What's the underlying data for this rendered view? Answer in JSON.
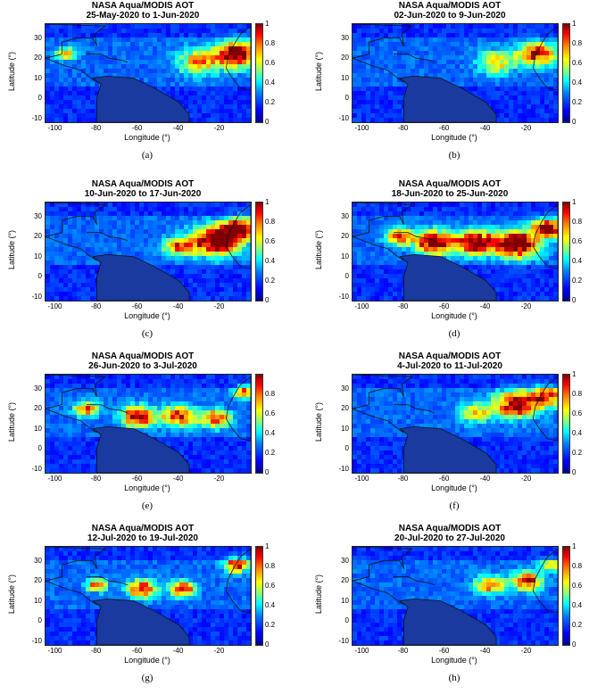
{
  "chart_data": [
    {
      "type": "heatmap",
      "title": "NASA Aqua/MODIS AOT",
      "subtitle": "25-May-2020 to 1-Jun-2020",
      "panel_label": "(a)",
      "xlabel": "Longitude (°)",
      "ylabel": "Latitude (°)",
      "xlim": [
        -105,
        -5
      ],
      "ylim": [
        -12,
        37
      ],
      "xticks": [
        "-100",
        "-80",
        "-60",
        "-40",
        "-20"
      ],
      "yticks": [
        "30",
        "20",
        "10",
        "0",
        "-10"
      ],
      "colorbar": {
        "range": [
          0,
          1
        ],
        "ticks": [
          "1",
          "0.8",
          "0.6",
          "0.4",
          "0.2",
          "0"
        ]
      },
      "plumes": [
        {
          "lon": -12,
          "lat": 22,
          "aot": 0.9,
          "r": 10
        },
        {
          "lon": -30,
          "lat": 18,
          "aot": 0.5,
          "r": 10
        },
        {
          "lon": -95,
          "lat": 22,
          "aot": 0.5,
          "r": 5
        }
      ]
    },
    {
      "type": "heatmap",
      "title": "NASA Aqua/MODIS AOT",
      "subtitle": "02-Jun-2020 to 9-Jun-2020",
      "panel_label": "(b)",
      "xlabel": "Longitude (°)",
      "ylabel": "Latitude (°)",
      "xlim": [
        -105,
        -5
      ],
      "ylim": [
        -12,
        37
      ],
      "xticks": [
        "-100",
        "-80",
        "-60",
        "-40",
        "-20"
      ],
      "yticks": [
        "30",
        "20",
        "10",
        "0",
        "-10"
      ],
      "colorbar": {
        "range": [
          0,
          1
        ],
        "ticks": [
          "1",
          "0.8",
          "0.6",
          "0.4",
          "0.2",
          "0"
        ]
      },
      "plumes": [
        {
          "lon": -15,
          "lat": 22,
          "aot": 0.75,
          "r": 9
        },
        {
          "lon": -35,
          "lat": 18,
          "aot": 0.45,
          "r": 9
        }
      ]
    },
    {
      "type": "heatmap",
      "title": "NASA Aqua/MODIS AOT",
      "subtitle": "10-Jun-2020 to 17-Jun-2020",
      "panel_label": "(c)",
      "xlabel": "Longitude (°)",
      "ylabel": "Latitude (°)",
      "xlim": [
        -105,
        -5
      ],
      "ylim": [
        -12,
        37
      ],
      "xticks": [
        "-100",
        "-80",
        "-60",
        "-40",
        "-20"
      ],
      "yticks": [
        "30",
        "20",
        "10",
        "0",
        "-10"
      ],
      "colorbar": {
        "range": [
          0,
          1
        ],
        "ticks": [
          "1",
          "0.8",
          "0.6",
          "0.4",
          "0.2",
          "0"
        ]
      },
      "plumes": [
        {
          "lon": -22,
          "lat": 18,
          "aot": 1.0,
          "r": 11
        },
        {
          "lon": -10,
          "lat": 24,
          "aot": 0.85,
          "r": 8
        },
        {
          "lon": -40,
          "lat": 15,
          "aot": 0.6,
          "r": 7
        }
      ]
    },
    {
      "type": "heatmap",
      "title": "NASA Aqua/MODIS AOT",
      "subtitle": "18-Jun-2020 to 25-Jun-2020",
      "panel_label": "(d)",
      "xlabel": "Longitude (°)",
      "ylabel": "Latitude (°)",
      "xlim": [
        -105,
        -5
      ],
      "ylim": [
        -12,
        37
      ],
      "xticks": [
        "-100",
        "-80",
        "-60",
        "-40",
        "-20"
      ],
      "yticks": [
        "30",
        "20",
        "10",
        "0",
        "-10"
      ],
      "colorbar": {
        "range": [
          0,
          1
        ],
        "ticks": [
          "1",
          "0.8",
          "0.6",
          "0.4",
          "0.2",
          "0"
        ]
      },
      "plumes": [
        {
          "lon": -25,
          "lat": 16,
          "aot": 1.0,
          "r": 10
        },
        {
          "lon": -45,
          "lat": 17,
          "aot": 0.95,
          "r": 9
        },
        {
          "lon": -65,
          "lat": 17,
          "aot": 0.9,
          "r": 9
        },
        {
          "lon": -82,
          "lat": 20,
          "aot": 0.8,
          "r": 6
        },
        {
          "lon": -10,
          "lat": 24,
          "aot": 0.9,
          "r": 7
        }
      ]
    },
    {
      "type": "heatmap",
      "title": "NASA Aqua/MODIS AOT",
      "subtitle": "26-Jun-2020 to 3-Jul-2020",
      "panel_label": "(e)",
      "xlabel": "Longitude (°)",
      "ylabel": "Latitude (°)",
      "xlim": [
        -105,
        -5
      ],
      "ylim": [
        -12,
        37
      ],
      "xticks": [
        "-100",
        "-80",
        "-60",
        "-40",
        "-20"
      ],
      "yticks": [
        "30",
        "20",
        "10",
        "0",
        "-10"
      ],
      "colorbar": {
        "range": [
          0,
          1
        ],
        "ticks": [
          "0.8",
          "0.6",
          "0.4",
          "0.2",
          "0"
        ]
      },
      "plumes": [
        {
          "lon": -60,
          "lat": 16,
          "aot": 0.8,
          "r": 8
        },
        {
          "lon": -40,
          "lat": 16,
          "aot": 0.7,
          "r": 8
        },
        {
          "lon": -22,
          "lat": 15,
          "aot": 0.7,
          "r": 7
        },
        {
          "lon": -85,
          "lat": 20,
          "aot": 0.6,
          "r": 6
        },
        {
          "lon": -8,
          "lat": 28,
          "aot": 0.7,
          "r": 5
        }
      ]
    },
    {
      "type": "heatmap",
      "title": "NASA Aqua/MODIS AOT",
      "subtitle": "4-Jul-2020 to 11-Jul-2020",
      "panel_label": "(f)",
      "xlabel": "Longitude (°)",
      "ylabel": "Latitude (°)",
      "xlim": [
        -105,
        -5
      ],
      "ylim": [
        -12,
        37
      ],
      "xticks": [
        "-100",
        "-80",
        "-60",
        "-40",
        "-20"
      ],
      "yticks": [
        "30",
        "20",
        "10",
        "0",
        "-10"
      ],
      "colorbar": {
        "range": [
          0,
          1
        ],
        "ticks": [
          "1",
          "0.8",
          "0.6",
          "0.4",
          "0.2",
          "0"
        ]
      },
      "plumes": [
        {
          "lon": -25,
          "lat": 22,
          "aot": 0.9,
          "r": 10
        },
        {
          "lon": -10,
          "lat": 26,
          "aot": 0.65,
          "r": 8
        },
        {
          "lon": -45,
          "lat": 18,
          "aot": 0.45,
          "r": 8
        }
      ]
    },
    {
      "type": "heatmap",
      "title": "NASA Aqua/MODIS AOT",
      "subtitle": "12-Jul-2020 to 19-Jul-2020",
      "panel_label": "(g)",
      "xlabel": "Longitude (°)",
      "ylabel": "Latitude (°)",
      "xlim": [
        -105,
        -5
      ],
      "ylim": [
        -12,
        37
      ],
      "xticks": [
        "-100",
        "-80",
        "-60",
        "-40",
        "-20"
      ],
      "yticks": [
        "30",
        "20",
        "10",
        "0",
        "-10"
      ],
      "colorbar": {
        "range": [
          0,
          1
        ],
        "ticks": [
          "1",
          "0.8",
          "0.6",
          "0.4",
          "0.2",
          "0"
        ]
      },
      "plumes": [
        {
          "lon": -58,
          "lat": 16,
          "aot": 0.75,
          "r": 7
        },
        {
          "lon": -38,
          "lat": 16,
          "aot": 0.7,
          "r": 6
        },
        {
          "lon": -80,
          "lat": 18,
          "aot": 0.6,
          "r": 5
        },
        {
          "lon": -12,
          "lat": 28,
          "aot": 0.7,
          "r": 6
        }
      ]
    },
    {
      "type": "heatmap",
      "title": "NASA Aqua/MODIS AOT",
      "subtitle": "20-Jul-2020 to 27-Jul-2020",
      "panel_label": "(h)",
      "xlabel": "Longitude (°)",
      "ylabel": "Latitude (°)",
      "xlim": [
        -105,
        -5
      ],
      "ylim": [
        -12,
        37
      ],
      "xticks": [
        "-100",
        "-80",
        "-60",
        "-40",
        "-20"
      ],
      "yticks": [
        "30",
        "20",
        "10",
        "0",
        "-10"
      ],
      "colorbar": {
        "range": [
          0,
          1
        ],
        "ticks": [
          "1",
          "0.8",
          "0.6",
          "0.4",
          "0.2",
          "0"
        ]
      },
      "plumes": [
        {
          "lon": -20,
          "lat": 20,
          "aot": 0.8,
          "r": 7
        },
        {
          "lon": -38,
          "lat": 18,
          "aot": 0.6,
          "r": 7
        },
        {
          "lon": -8,
          "lat": 28,
          "aot": 0.55,
          "r": 5
        }
      ]
    }
  ]
}
